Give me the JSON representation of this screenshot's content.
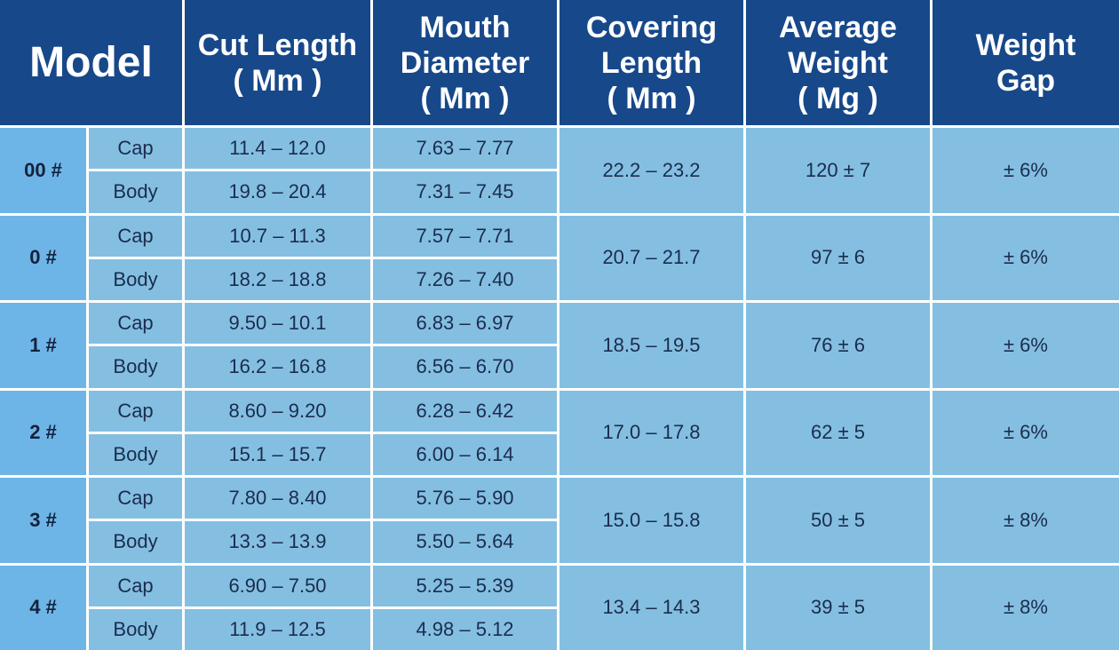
{
  "header": {
    "columns": [
      [
        "Model"
      ],
      [
        "Cut Length",
        "( Mm )"
      ],
      [
        "Mouth",
        "Diameter",
        "( Mm )"
      ],
      [
        "Covering",
        "Length",
        "( Mm )"
      ],
      [
        "Average",
        "Weight",
        "( Mg )"
      ],
      [
        "Weight",
        "Gap"
      ]
    ]
  },
  "groups": [
    {
      "model": "00 #",
      "cap": {
        "label": "Cap",
        "cut": "11.4 – 12.0",
        "mouth": "7.63 – 7.77"
      },
      "body": {
        "label": "Body",
        "cut": "19.8 – 20.4",
        "mouth": "7.31 – 7.45"
      },
      "covering": "22.2 – 23.2",
      "weight": "120 ± 7",
      "gap": "± 6%"
    },
    {
      "model": "0 #",
      "cap": {
        "label": "Cap",
        "cut": "10.7 – 11.3",
        "mouth": "7.57 – 7.71"
      },
      "body": {
        "label": "Body",
        "cut": "18.2 – 18.8",
        "mouth": "7.26 – 7.40"
      },
      "covering": "20.7 – 21.7",
      "weight": "97 ± 6",
      "gap": "± 6%"
    },
    {
      "model": "1 #",
      "cap": {
        "label": "Cap",
        "cut": "9.50 – 10.1",
        "mouth": "6.83 – 6.97"
      },
      "body": {
        "label": "Body",
        "cut": "16.2 – 16.8",
        "mouth": "6.56 – 6.70"
      },
      "covering": "18.5 – 19.5",
      "weight": "76 ± 6",
      "gap": "± 6%"
    },
    {
      "model": "2 #",
      "cap": {
        "label": "Cap",
        "cut": "8.60 – 9.20",
        "mouth": "6.28 – 6.42"
      },
      "body": {
        "label": "Body",
        "cut": "15.1 – 15.7",
        "mouth": "6.00 – 6.14"
      },
      "covering": "17.0 – 17.8",
      "weight": "62 ± 5",
      "gap": "± 6%"
    },
    {
      "model": "3 #",
      "cap": {
        "label": "Cap",
        "cut": "7.80 – 8.40",
        "mouth": "5.76 – 5.90"
      },
      "body": {
        "label": "Body",
        "cut": "13.3 – 13.9",
        "mouth": "5.50 – 5.64"
      },
      "covering": "15.0 – 15.8",
      "weight": "50 ± 5",
      "gap": "± 8%"
    },
    {
      "model": "4 #",
      "cap": {
        "label": "Cap",
        "cut": "6.90 – 7.50",
        "mouth": "5.25 – 5.39"
      },
      "body": {
        "label": "Body",
        "cut": "11.9 – 12.5",
        "mouth": "4.98 – 5.12"
      },
      "covering": "13.4 – 14.3",
      "weight": "39 ± 5",
      "gap": "± 8%"
    }
  ]
}
